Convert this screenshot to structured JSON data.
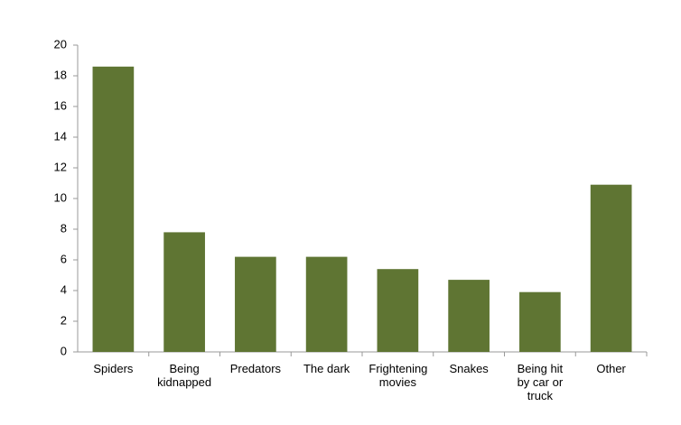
{
  "chart_data": {
    "type": "bar",
    "categories": [
      "Spiders",
      "Being kidnapped",
      "Predators",
      "The dark",
      "Frightening movies",
      "Snakes",
      "Being hit by car or truck",
      "Other"
    ],
    "values": [
      18.6,
      7.8,
      6.2,
      6.2,
      5.4,
      4.7,
      3.9,
      10.9
    ],
    "color": "#5f7533",
    "ylim": [
      0,
      20
    ],
    "yticks": [
      0,
      2,
      4,
      6,
      8,
      10,
      12,
      14,
      16,
      18,
      20
    ],
    "grid": false
  }
}
